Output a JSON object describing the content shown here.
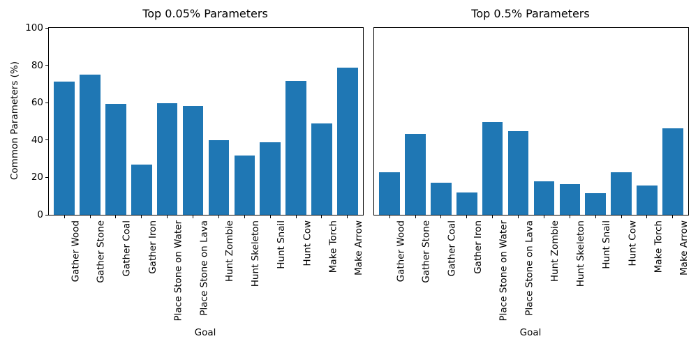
{
  "figure": {
    "background": "#ffffff",
    "text_color": "#000000",
    "bar_color": "#1f77b4"
  },
  "chart_data": [
    {
      "type": "bar",
      "title": "Top 0.05% Parameters",
      "xlabel": "Goal",
      "ylabel": "Common Parameters (%)",
      "ylim": [
        0,
        100
      ],
      "yticks": [
        0,
        20,
        40,
        60,
        80,
        100
      ],
      "show_y_ticks": true,
      "grid": false,
      "legend": "none",
      "bar_color": "#1f77b4",
      "categories": [
        "Gather Wood",
        "Gather Stone",
        "Gather Coal",
        "Gather Iron",
        "Place Stone on Water",
        "Place Stone on Lava",
        "Hunt Zombie",
        "Hunt Skeleton",
        "Hunt Snail",
        "Hunt Cow",
        "Make Torch",
        "Make Arrow"
      ],
      "values": [
        71.2,
        75.1,
        59.4,
        27.0,
        59.8,
        58.4,
        40.0,
        31.8,
        38.8,
        71.5,
        48.8,
        78.9
      ]
    },
    {
      "type": "bar",
      "title": "Top 0.5% Parameters",
      "xlabel": "Goal",
      "ylabel": "",
      "ylim": [
        0,
        100
      ],
      "yticks": [
        0,
        20,
        40,
        60,
        80,
        100
      ],
      "show_y_ticks": false,
      "grid": false,
      "legend": "none",
      "bar_color": "#1f77b4",
      "categories": [
        "Gather Wood",
        "Gather Stone",
        "Gather Coal",
        "Gather Iron",
        "Place Stone on Water",
        "Place Stone on Lava",
        "Hunt Zombie",
        "Hunt Skeleton",
        "Hunt Snail",
        "Hunt Cow",
        "Make Torch",
        "Make Arrow"
      ],
      "values": [
        22.9,
        43.3,
        17.3,
        12.1,
        49.6,
        44.8,
        17.8,
        16.3,
        11.4,
        22.9,
        15.8,
        46.4
      ]
    }
  ]
}
